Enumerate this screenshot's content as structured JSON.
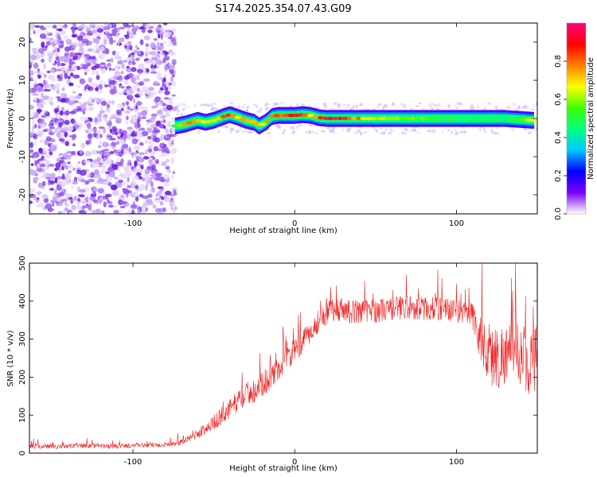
{
  "title": "S174.2025.354.07.43.G09",
  "chart_data": [
    {
      "type": "heatmap",
      "title": "S174.2025.354.07.43.G09",
      "xlabel": "Height of straight line (km)",
      "ylabel": "Frequency (Hz)",
      "xlim": [
        -164,
        150
      ],
      "ylim": [
        -25,
        25
      ],
      "xticks": [
        -100,
        0,
        100
      ],
      "xtick_labels": [
        "-100",
        "0",
        "100"
      ],
      "yticks": [
        -20,
        -10,
        0,
        10,
        20
      ],
      "ytick_labels": [
        "-20",
        "-10",
        "0",
        "10",
        "20"
      ],
      "noise_region_x": [
        -164,
        -74
      ],
      "signal_track": {
        "x": [
          -74,
          -68,
          -60,
          -55,
          -50,
          -44,
          -40,
          -35,
          -30,
          -25,
          -22,
          -18,
          -14,
          -10,
          -5,
          0,
          5,
          10,
          15,
          20,
          30,
          50,
          80,
          100,
          130,
          148
        ],
        "frequency": [
          -2.0,
          -1.5,
          -0.5,
          -1.0,
          -0.5,
          0.5,
          1.0,
          0.3,
          -0.5,
          -1.0,
          -2.0,
          -1.0,
          0.5,
          0.8,
          0.8,
          0.8,
          1.0,
          0.8,
          0.2,
          0.0,
          0.0,
          0.0,
          0.0,
          0.0,
          0.0,
          -0.5
        ],
        "amplitude": [
          0.6,
          0.75,
          0.85,
          0.7,
          0.75,
          0.85,
          0.9,
          0.75,
          0.8,
          0.8,
          0.7,
          0.75,
          0.85,
          0.9,
          0.85,
          0.9,
          0.85,
          0.8,
          0.9,
          1.0,
          0.95,
          0.7,
          0.6,
          0.55,
          0.5,
          0.7
        ]
      },
      "colorbar": {
        "label": "Normalized spectral amplitude",
        "range": [
          0,
          1
        ],
        "ticks": [
          0.0,
          0.2,
          0.4,
          0.6,
          0.8
        ],
        "tick_labels": [
          "0.0",
          "0.2",
          "0.4",
          "0.6",
          "0.8"
        ],
        "colors": [
          "#ffffff",
          "#7a00ff",
          "#0000ff",
          "#00c8ff",
          "#00ff80",
          "#40ff00",
          "#ffff00",
          "#ff8000",
          "#ff0000",
          "#ff0080"
        ]
      }
    },
    {
      "type": "line",
      "xlabel": "Height of straight line (km)",
      "ylabel": "SNR (10 * v/v)",
      "xlim": [
        -164,
        150
      ],
      "ylim": [
        0,
        500
      ],
      "xticks": [
        -100,
        0,
        100
      ],
      "xtick_labels": [
        "-100",
        "0",
        "100"
      ],
      "yticks": [
        0,
        100,
        200,
        300,
        400,
        500
      ],
      "ytick_labels": [
        "0",
        "100",
        "200",
        "300",
        "400",
        "500"
      ],
      "color": "#ee2222",
      "series": [
        {
          "name": "SNR",
          "x": [
            -164,
            -150,
            -140,
            -130,
            -120,
            -110,
            -100,
            -90,
            -80,
            -70,
            -65,
            -60,
            -55,
            -50,
            -45,
            -40,
            -35,
            -30,
            -25,
            -20,
            -15,
            -10,
            -5,
            0,
            5,
            10,
            15,
            20,
            25,
            30,
            35,
            40,
            50,
            60,
            70,
            80,
            90,
            100,
            105,
            110,
            115,
            120,
            125,
            130,
            135,
            140,
            145,
            150
          ],
          "y": [
            18,
            18,
            18,
            20,
            18,
            18,
            20,
            22,
            22,
            28,
            40,
            50,
            65,
            80,
            100,
            115,
            140,
            155,
            165,
            180,
            200,
            220,
            250,
            270,
            290,
            320,
            350,
            370,
            380,
            380,
            370,
            375,
            375,
            380,
            385,
            380,
            380,
            375,
            370,
            360,
            300,
            260,
            250,
            260,
            270,
            260,
            240,
            250
          ],
          "spread": [
            8,
            8,
            8,
            8,
            8,
            8,
            8,
            8,
            8,
            10,
            12,
            15,
            20,
            25,
            30,
            35,
            35,
            40,
            40,
            40,
            40,
            40,
            40,
            40,
            40,
            40,
            40,
            40,
            40,
            40,
            40,
            40,
            40,
            40,
            40,
            40,
            40,
            40,
            40,
            50,
            80,
            110,
            110,
            100,
            100,
            100,
            110,
            110
          ]
        }
      ]
    }
  ]
}
